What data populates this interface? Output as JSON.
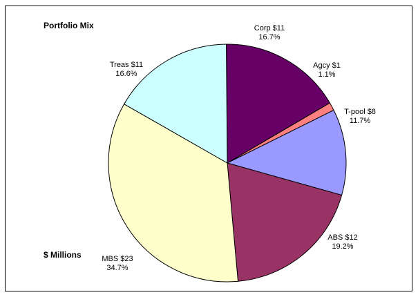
{
  "chart_data": {
    "type": "pie",
    "title": "Portfolio Mix",
    "subtitle": "$ Millions",
    "slices": [
      {
        "name": "Corp",
        "value_label": "$11",
        "value": 11,
        "percent": 16.7,
        "percent_label": "16.7%",
        "color": "#660066"
      },
      {
        "name": "Agcy",
        "value_label": "$1",
        "value": 1,
        "percent": 1.1,
        "percent_label": "1.1%",
        "color": "#ff8080"
      },
      {
        "name": "T-pool",
        "value_label": "$8",
        "value": 8,
        "percent": 11.7,
        "percent_label": "11.7%",
        "color": "#9999ff"
      },
      {
        "name": "ABS",
        "value_label": "$12",
        "value": 12,
        "percent": 19.2,
        "percent_label": "19.2%",
        "color": "#993366"
      },
      {
        "name": "MBS",
        "value_label": "$23",
        "value": 23,
        "percent": 34.7,
        "percent_label": "34.7%",
        "color": "#ffffcc"
      },
      {
        "name": "Treas",
        "value_label": "$11",
        "value": 11,
        "percent": 16.6,
        "percent_label": "16.6%",
        "color": "#ccffff"
      }
    ]
  }
}
